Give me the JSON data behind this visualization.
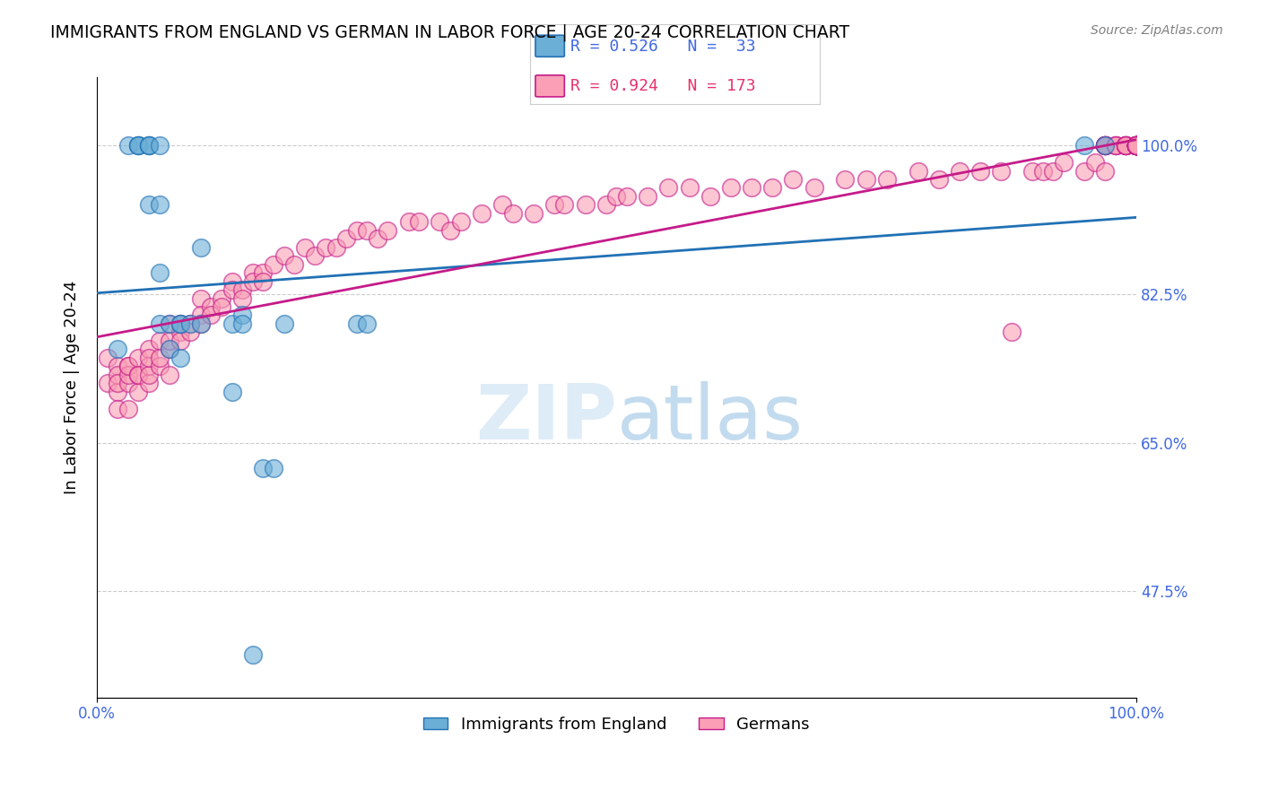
{
  "title": "IMMIGRANTS FROM ENGLAND VS GERMAN IN LABOR FORCE | AGE 20-24 CORRELATION CHART",
  "source": "Source: ZipAtlas.com",
  "ylabel": "In Labor Force | Age 20-24",
  "xlabel": "",
  "watermark": "ZIPatlas",
  "r_england": 0.526,
  "n_england": 33,
  "r_german": 0.924,
  "n_german": 173,
  "xlim": [
    0.0,
    1.0
  ],
  "ylim": [
    0.35,
    1.08
  ],
  "yticks": [
    0.475,
    0.65,
    0.825,
    1.0
  ],
  "ytick_labels": [
    "47.5%",
    "65.0%",
    "82.5%",
    "100.0%"
  ],
  "xtick_labels": [
    "0.0%",
    "100.0%"
  ],
  "xticks": [
    0.0,
    1.0
  ],
  "color_england": "#6baed6",
  "color_england_line": "#2171b5",
  "color_german": "#fa9fb5",
  "color_german_line": "#c51b8a",
  "legend_label_england": "Immigrants from England",
  "legend_label_german": "Germans",
  "england_x": [
    0.02,
    0.03,
    0.04,
    0.04,
    0.04,
    0.05,
    0.05,
    0.05,
    0.05,
    0.06,
    0.06,
    0.06,
    0.06,
    0.07,
    0.07,
    0.08,
    0.08,
    0.08,
    0.09,
    0.1,
    0.1,
    0.13,
    0.13,
    0.14,
    0.14,
    0.15,
    0.16,
    0.17,
    0.18,
    0.25,
    0.26,
    0.95,
    0.97
  ],
  "england_y": [
    0.76,
    1.0,
    1.0,
    1.0,
    1.0,
    1.0,
    1.0,
    1.0,
    0.93,
    1.0,
    0.93,
    0.85,
    0.79,
    0.79,
    0.76,
    0.79,
    0.75,
    0.79,
    0.79,
    0.79,
    0.88,
    0.79,
    0.71,
    0.8,
    0.79,
    0.4,
    0.62,
    0.62,
    0.79,
    0.79,
    0.79,
    1.0,
    1.0
  ],
  "german_x": [
    0.01,
    0.01,
    0.02,
    0.02,
    0.02,
    0.02,
    0.02,
    0.03,
    0.03,
    0.03,
    0.03,
    0.03,
    0.04,
    0.04,
    0.04,
    0.04,
    0.05,
    0.05,
    0.05,
    0.05,
    0.05,
    0.06,
    0.06,
    0.06,
    0.07,
    0.07,
    0.07,
    0.07,
    0.08,
    0.08,
    0.08,
    0.09,
    0.09,
    0.1,
    0.1,
    0.1,
    0.11,
    0.11,
    0.12,
    0.12,
    0.13,
    0.13,
    0.14,
    0.14,
    0.15,
    0.15,
    0.16,
    0.16,
    0.17,
    0.18,
    0.19,
    0.2,
    0.21,
    0.22,
    0.23,
    0.24,
    0.25,
    0.26,
    0.27,
    0.28,
    0.3,
    0.31,
    0.33,
    0.34,
    0.35,
    0.37,
    0.39,
    0.4,
    0.42,
    0.44,
    0.45,
    0.47,
    0.49,
    0.5,
    0.51,
    0.53,
    0.55,
    0.57,
    0.59,
    0.61,
    0.63,
    0.65,
    0.67,
    0.69,
    0.72,
    0.74,
    0.76,
    0.79,
    0.81,
    0.83,
    0.85,
    0.87,
    0.88,
    0.9,
    0.91,
    0.92,
    0.93,
    0.95,
    0.96,
    0.97,
    0.97,
    0.97,
    0.97,
    0.97,
    0.97,
    0.97,
    0.97,
    0.98,
    0.98,
    0.98,
    0.99,
    0.99,
    0.99,
    0.99,
    0.99,
    0.99,
    1.0,
    1.0,
    1.0,
    1.0,
    1.0,
    1.0,
    1.0,
    1.0,
    1.0,
    1.0,
    1.0,
    1.0,
    1.0,
    1.0,
    1.0,
    1.0,
    1.0,
    1.0,
    1.0,
    1.0,
    1.0,
    1.0,
    1.0,
    1.0,
    1.0,
    1.0,
    1.0,
    1.0,
    1.0,
    1.0,
    1.0,
    1.0,
    1.0,
    1.0,
    1.0,
    1.0,
    1.0,
    1.0,
    1.0,
    1.0,
    1.0,
    1.0,
    1.0,
    1.0,
    1.0,
    1.0,
    1.0,
    1.0,
    1.0,
    1.0
  ],
  "german_y": [
    0.75,
    0.72,
    0.74,
    0.71,
    0.73,
    0.69,
    0.72,
    0.74,
    0.72,
    0.73,
    0.74,
    0.69,
    0.73,
    0.75,
    0.71,
    0.73,
    0.76,
    0.72,
    0.74,
    0.73,
    0.75,
    0.77,
    0.74,
    0.75,
    0.79,
    0.76,
    0.77,
    0.73,
    0.78,
    0.77,
    0.79,
    0.79,
    0.78,
    0.82,
    0.8,
    0.79,
    0.81,
    0.8,
    0.82,
    0.81,
    0.84,
    0.83,
    0.83,
    0.82,
    0.85,
    0.84,
    0.85,
    0.84,
    0.86,
    0.87,
    0.86,
    0.88,
    0.87,
    0.88,
    0.88,
    0.89,
    0.9,
    0.9,
    0.89,
    0.9,
    0.91,
    0.91,
    0.91,
    0.9,
    0.91,
    0.92,
    0.93,
    0.92,
    0.92,
    0.93,
    0.93,
    0.93,
    0.93,
    0.94,
    0.94,
    0.94,
    0.95,
    0.95,
    0.94,
    0.95,
    0.95,
    0.95,
    0.96,
    0.95,
    0.96,
    0.96,
    0.96,
    0.97,
    0.96,
    0.97,
    0.97,
    0.97,
    0.78,
    0.97,
    0.97,
    0.97,
    0.98,
    0.97,
    0.98,
    0.97,
    1.0,
    1.0,
    1.0,
    1.0,
    1.0,
    1.0,
    1.0,
    1.0,
    1.0,
    1.0,
    1.0,
    1.0,
    1.0,
    1.0,
    1.0,
    1.0,
    1.0,
    1.0,
    1.0,
    1.0,
    1.0,
    1.0,
    1.0,
    1.0,
    1.0,
    1.0,
    1.0,
    1.0,
    1.0,
    1.0,
    1.0,
    1.0,
    1.0,
    1.0,
    1.0,
    1.0,
    1.0,
    1.0,
    1.0,
    1.0,
    1.0,
    1.0,
    1.0,
    1.0,
    1.0,
    1.0,
    1.0,
    1.0,
    1.0,
    1.0,
    1.0,
    1.0,
    1.0,
    1.0,
    1.0,
    1.0,
    1.0,
    1.0,
    1.0,
    1.0,
    1.0,
    1.0,
    1.0,
    1.0,
    1.0,
    1.0
  ]
}
